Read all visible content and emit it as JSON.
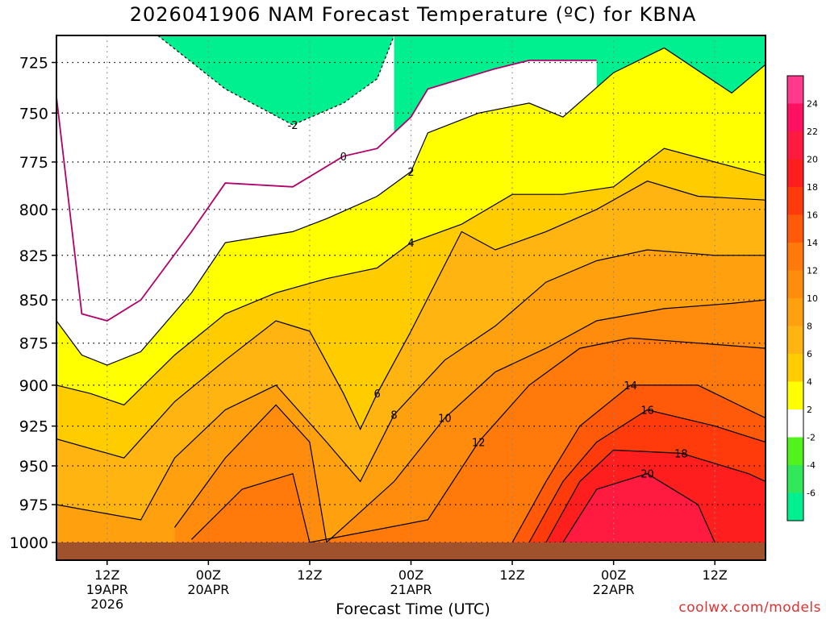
{
  "chart_data": {
    "type": "heatmap",
    "title": "2026041906 NAM Forecast Temperature (ºC) for KBNA",
    "xlabel": "Forecast Time (UTC)",
    "ylabel": "",
    "credit": "coolwx.com/models",
    "y_scale": "pressure (inverted)",
    "ylim": [
      1000,
      712
    ],
    "y_ticks": [
      725,
      750,
      775,
      800,
      825,
      850,
      875,
      900,
      925,
      950,
      975,
      1000
    ],
    "x_ticks": [
      {
        "hour": 12,
        "lines": [
          "12Z",
          "19APR",
          "2026"
        ]
      },
      {
        "hour": 24,
        "lines": [
          "00Z",
          "20APR"
        ]
      },
      {
        "hour": 36,
        "lines": [
          "12Z"
        ]
      },
      {
        "hour": 48,
        "lines": [
          "00Z",
          "21APR"
        ]
      },
      {
        "hour": 60,
        "lines": [
          "12Z"
        ]
      },
      {
        "hour": 72,
        "lines": [
          "00Z",
          "22APR"
        ]
      },
      {
        "hour": 84,
        "lines": [
          "12Z"
        ]
      }
    ],
    "xlim": [
      6,
      90
    ],
    "grid": true,
    "colorbar": {
      "position": "right",
      "tick_labels": [
        24,
        22,
        20,
        18,
        16,
        14,
        12,
        10,
        8,
        6,
        4,
        2,
        -2,
        -4,
        -6
      ],
      "bands": [
        {
          "from": 24,
          "to": 26,
          "color": "#ff3a8c"
        },
        {
          "from": 22,
          "to": 24,
          "color": "#ff1060"
        },
        {
          "from": 20,
          "to": 22,
          "color": "#ff1a40"
        },
        {
          "from": 18,
          "to": 20,
          "color": "#ff1e1e"
        },
        {
          "from": 16,
          "to": 18,
          "color": "#ff3b0c"
        },
        {
          "from": 14,
          "to": 16,
          "color": "#ff5a0a"
        },
        {
          "from": 12,
          "to": 14,
          "color": "#ff7a0a"
        },
        {
          "from": 10,
          "to": 12,
          "color": "#ff8c0c"
        },
        {
          "from": 8,
          "to": 10,
          "color": "#ffa00e"
        },
        {
          "from": 6,
          "to": 8,
          "color": "#ffb412"
        },
        {
          "from": 4,
          "to": 6,
          "color": "#ffcc00"
        },
        {
          "from": 2,
          "to": 4,
          "color": "#ffff00"
        },
        {
          "from": -2,
          "to": 2,
          "color": "#ffffff"
        },
        {
          "from": -4,
          "to": -2,
          "color": "#52f21c"
        },
        {
          "from": -6,
          "to": -4,
          "color": "#30e85a"
        },
        {
          "from": -8,
          "to": -6,
          "color": "#00f090"
        }
      ]
    },
    "contours": [
      {
        "level": -2,
        "label": "-2",
        "points": [
          [
            6,
            712
          ],
          [
            18,
            712
          ],
          [
            26,
            738
          ],
          [
            34,
            756
          ],
          [
            40,
            745
          ],
          [
            44,
            733
          ],
          [
            46,
            712
          ]
        ]
      },
      {
        "level": 0,
        "label": "0",
        "points": [
          [
            6,
            742
          ],
          [
            9,
            858
          ],
          [
            12,
            862
          ],
          [
            16,
            850
          ],
          [
            22,
            812
          ],
          [
            26,
            786
          ],
          [
            34,
            788
          ],
          [
            40,
            772
          ],
          [
            44,
            768
          ],
          [
            48,
            752
          ],
          [
            50,
            738
          ],
          [
            58,
            728
          ],
          [
            62,
            724
          ],
          [
            70,
            724
          ]
        ]
      },
      {
        "level": 2,
        "label": "2",
        "points": [
          [
            6,
            862
          ],
          [
            9,
            882
          ],
          [
            12,
            888
          ],
          [
            16,
            880
          ],
          [
            22,
            846
          ],
          [
            26,
            818
          ],
          [
            34,
            812
          ],
          [
            38,
            805
          ],
          [
            44,
            793
          ],
          [
            48,
            780
          ],
          [
            50,
            760
          ],
          [
            56,
            750
          ],
          [
            62,
            745
          ],
          [
            66,
            752
          ],
          [
            72,
            730
          ],
          [
            78,
            718
          ],
          [
            86,
            740
          ],
          [
            90,
            726
          ]
        ]
      },
      {
        "level": 4,
        "label": "4",
        "points": [
          [
            6,
            900
          ],
          [
            10,
            905
          ],
          [
            14,
            912
          ],
          [
            20,
            882
          ],
          [
            26,
            858
          ],
          [
            32,
            846
          ],
          [
            38,
            838
          ],
          [
            44,
            832
          ],
          [
            48,
            818
          ],
          [
            54,
            808
          ],
          [
            60,
            792
          ],
          [
            66,
            792
          ],
          [
            72,
            788
          ],
          [
            78,
            768
          ],
          [
            84,
            775
          ],
          [
            90,
            782
          ]
        ]
      },
      {
        "level": 6,
        "label": "6",
        "points": [
          [
            6,
            933
          ],
          [
            14,
            945
          ],
          [
            20,
            910
          ],
          [
            26,
            885
          ],
          [
            32,
            862
          ],
          [
            36,
            868
          ],
          [
            40,
            905
          ],
          [
            42,
            927
          ],
          [
            44,
            905
          ],
          [
            48,
            868
          ],
          [
            54,
            812
          ],
          [
            58,
            822
          ],
          [
            64,
            812
          ],
          [
            70,
            800
          ],
          [
            76,
            785
          ],
          [
            82,
            793
          ],
          [
            90,
            795
          ]
        ]
      },
      {
        "level": 8,
        "label": "8",
        "points": [
          [
            6,
            975
          ],
          [
            16,
            985
          ],
          [
            20,
            945
          ],
          [
            26,
            915
          ],
          [
            32,
            900
          ],
          [
            38,
            935
          ],
          [
            42,
            960
          ],
          [
            46,
            918
          ],
          [
            52,
            885
          ],
          [
            58,
            865
          ],
          [
            64,
            840
          ],
          [
            70,
            828
          ],
          [
            76,
            822
          ],
          [
            84,
            825
          ],
          [
            90,
            825
          ]
        ]
      },
      {
        "level": 10,
        "label": "10",
        "points": [
          [
            20,
            990
          ],
          [
            26,
            945
          ],
          [
            32,
            912
          ],
          [
            36,
            935
          ],
          [
            38,
            1000
          ],
          [
            46,
            960
          ],
          [
            52,
            920
          ],
          [
            58,
            892
          ],
          [
            64,
            878
          ],
          [
            70,
            862
          ],
          [
            78,
            855
          ],
          [
            86,
            852
          ],
          [
            90,
            850
          ]
        ]
      },
      {
        "level": 12,
        "label": "12",
        "points": [
          [
            22,
            998
          ],
          [
            28,
            965
          ],
          [
            34,
            955
          ],
          [
            36,
            1000
          ],
          [
            50,
            985
          ],
          [
            56,
            935
          ],
          [
            62,
            900
          ],
          [
            68,
            878
          ],
          [
            74,
            872
          ],
          [
            82,
            875
          ],
          [
            90,
            878
          ]
        ]
      },
      {
        "level": 14,
        "label": "14",
        "points": [
          [
            60,
            1000
          ],
          [
            64,
            960
          ],
          [
            68,
            925
          ],
          [
            74,
            900
          ],
          [
            82,
            900
          ],
          [
            88,
            915
          ],
          [
            90,
            920
          ]
        ]
      },
      {
        "level": 16,
        "label": "16",
        "points": [
          [
            62,
            1000
          ],
          [
            66,
            960
          ],
          [
            70,
            935
          ],
          [
            76,
            915
          ],
          [
            84,
            925
          ],
          [
            90,
            935
          ]
        ]
      },
      {
        "level": 18,
        "label": "18",
        "points": [
          [
            64,
            1000
          ],
          [
            68,
            960
          ],
          [
            72,
            940
          ],
          [
            80,
            942
          ],
          [
            88,
            955
          ],
          [
            90,
            960
          ]
        ]
      },
      {
        "level": 20,
        "label": "20",
        "points": [
          [
            66,
            1000
          ],
          [
            70,
            965
          ],
          [
            76,
            955
          ],
          [
            82,
            975
          ],
          [
            84,
            1000
          ]
        ]
      }
    ]
  }
}
